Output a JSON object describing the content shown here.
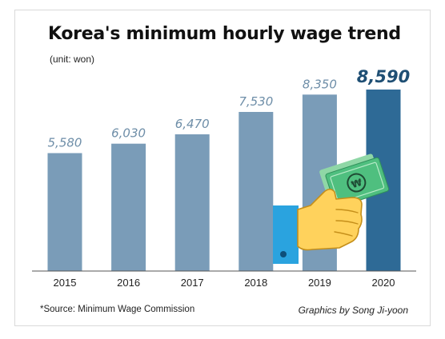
{
  "title": "Korea's minimum hourly wage trend",
  "unit_note": "(unit: won)",
  "source_note": "*Source: Minimum Wage Commission",
  "credit": "Graphics by Song Ji-yoon",
  "colors": {
    "bar": "#7a9cb8",
    "bar_highlight": "#2e6a96",
    "label": "#6e8ea8",
    "label_highlight": "#1f4f74",
    "baseline": "#555555"
  },
  "illustration": {
    "name": "hand-holding-money",
    "currency_symbol": "₩"
  },
  "chart_data": {
    "type": "bar",
    "title": "Korea's minimum hourly wage trend",
    "categories": [
      "2015",
      "2016",
      "2017",
      "2018",
      "2019",
      "2020"
    ],
    "values": [
      5580,
      6030,
      6470,
      7530,
      8350,
      8590
    ],
    "value_labels": [
      "5,580",
      "6,030",
      "6,470",
      "7,530",
      "8,350",
      "8,590"
    ],
    "highlight_index": 5,
    "xlabel": "",
    "ylabel": "",
    "ylim": [
      0,
      8590
    ],
    "grid": false,
    "legend": "none"
  }
}
